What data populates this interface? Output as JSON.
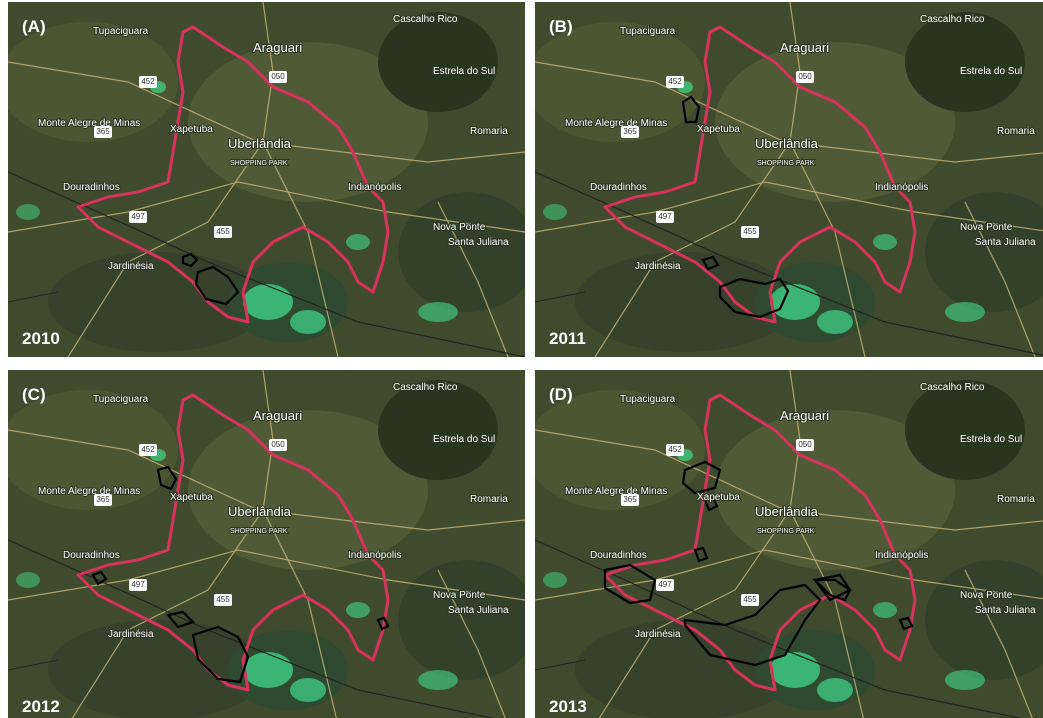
{
  "panels": [
    {
      "label": "(A)",
      "year": "2010"
    },
    {
      "label": "(B)",
      "year": "2011"
    },
    {
      "label": "(C)",
      "year": "2012"
    },
    {
      "label": "(D)",
      "year": "2013"
    }
  ],
  "places": [
    "Tupaciguara",
    "Araguari",
    "Cascalho Rico",
    "Estrela do Sul",
    "Monte Alegre de Minas",
    "Xapetuba",
    "Uberlândia",
    "SHOPPING PARK",
    "Romaria",
    "Douradinhos",
    "Indianópolis",
    "Nova Ponte",
    "Santa Juliana",
    "Jardinésia"
  ],
  "roads": [
    "452",
    "050",
    "365",
    "497",
    "455"
  ]
}
